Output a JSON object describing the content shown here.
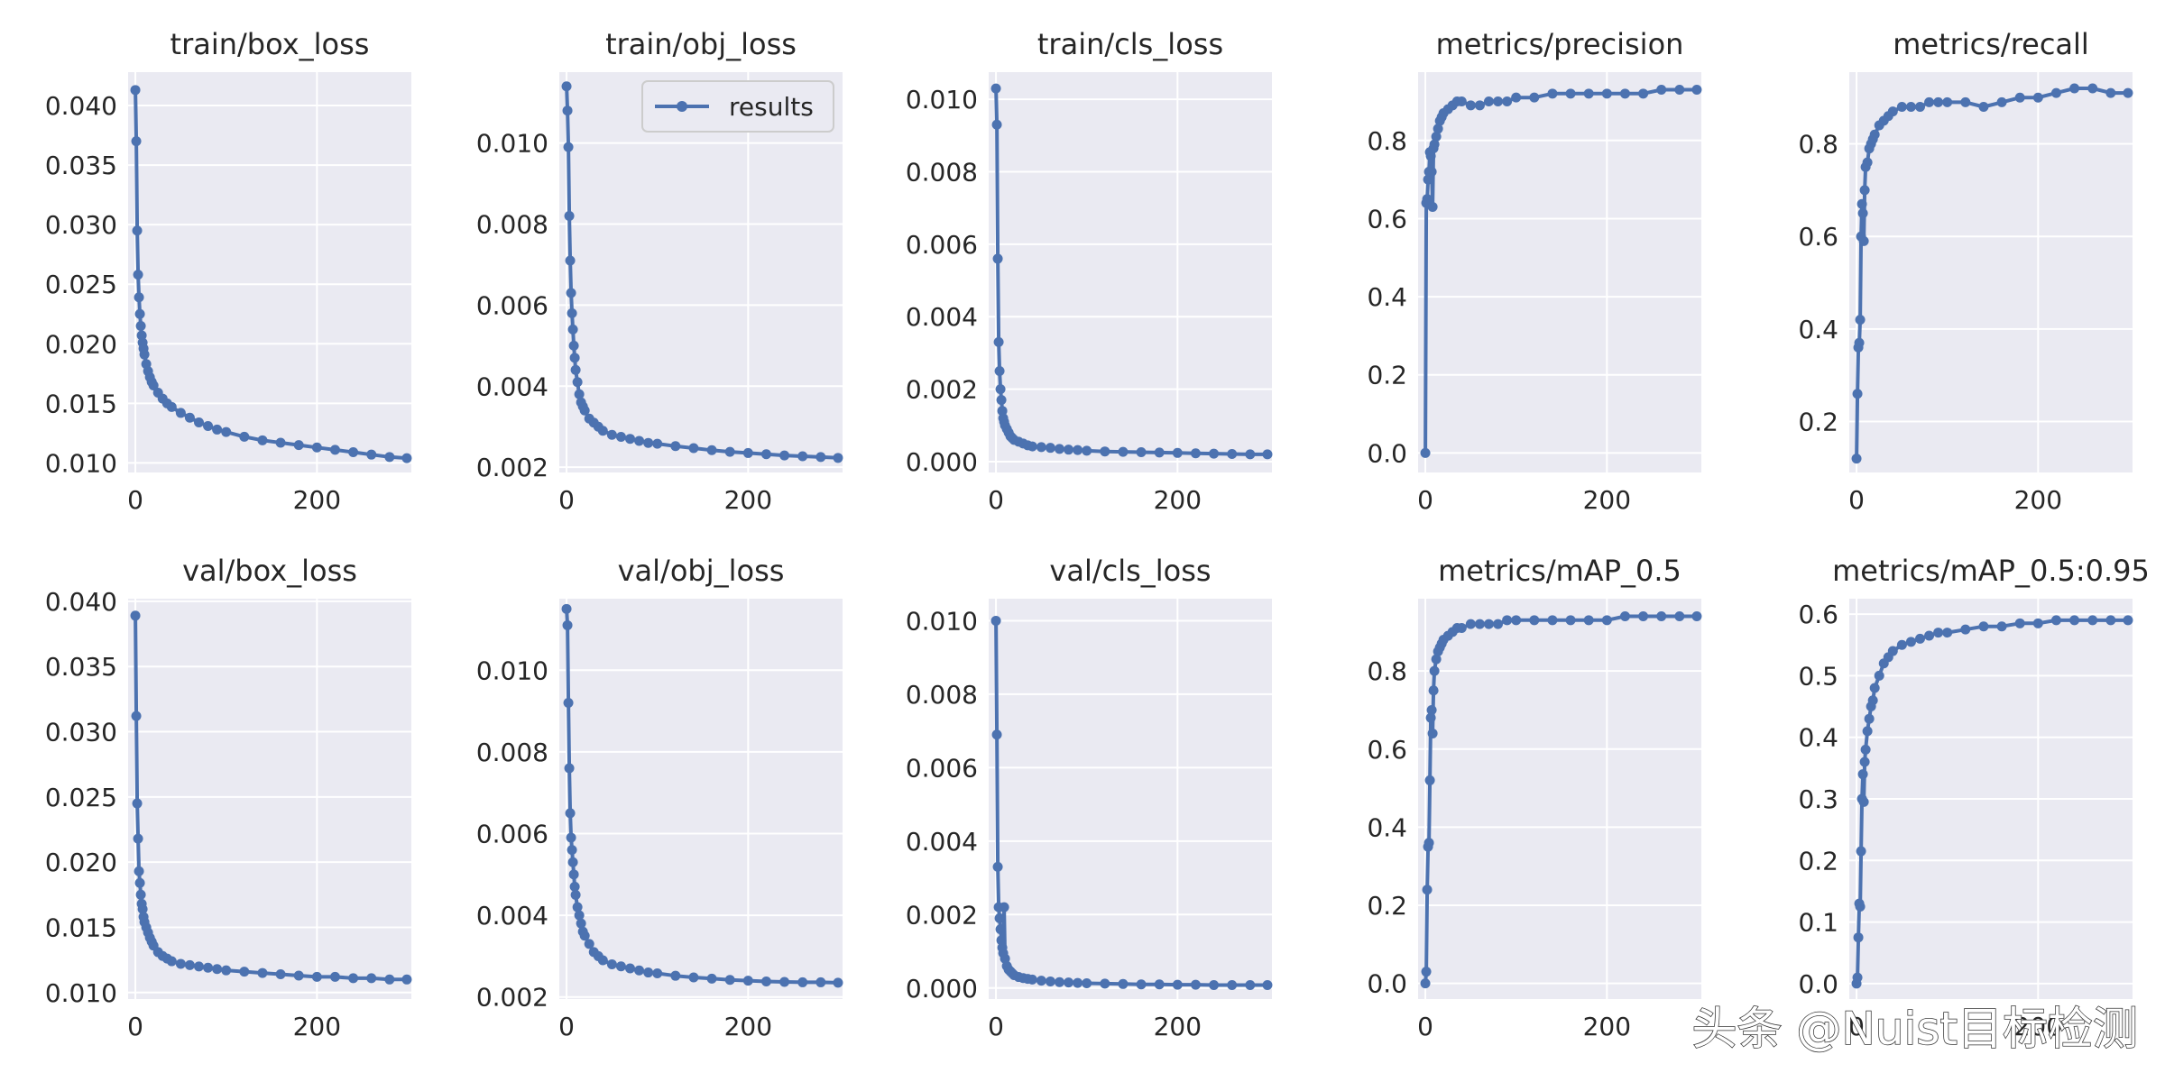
{
  "figure": {
    "watermark": "头条 @Nuist目标检测"
  },
  "style": {
    "series_color": "#4c72b0",
    "axes_background": "#eaeaf2",
    "grid_color": "#ffffff",
    "text_color": "#262626"
  },
  "chart_data": [
    {
      "type": "line",
      "title": "train/box_loss",
      "xlim": [
        -8,
        304
      ],
      "ylim": [
        0.0092,
        0.0428
      ],
      "xticks": [
        0,
        200
      ],
      "xtick_labels": [
        "0",
        "200"
      ],
      "yticks": [
        0.01,
        0.015,
        0.02,
        0.025,
        0.03,
        0.035,
        0.04
      ],
      "ytick_labels": [
        "0.010",
        "0.015",
        "0.020",
        "0.025",
        "0.030",
        "0.035",
        "0.040"
      ],
      "grid": true,
      "series": [
        {
          "x": [
            0,
            1,
            2,
            3,
            4,
            5,
            6,
            7,
            8,
            9,
            10,
            12,
            14,
            16,
            18,
            20,
            25,
            30,
            35,
            40,
            50,
            60,
            70,
            80,
            90,
            100,
            120,
            140,
            160,
            180,
            200,
            220,
            240,
            260,
            280,
            299
          ],
          "y": [
            0.0413,
            0.037,
            0.0295,
            0.0258,
            0.0239,
            0.0225,
            0.0215,
            0.0207,
            0.0201,
            0.0196,
            0.0191,
            0.0183,
            0.0177,
            0.0172,
            0.0168,
            0.0165,
            0.0159,
            0.0154,
            0.015,
            0.0147,
            0.0142,
            0.0138,
            0.0134,
            0.0131,
            0.0128,
            0.0126,
            0.0122,
            0.0119,
            0.0117,
            0.0115,
            0.0113,
            0.0111,
            0.0109,
            0.0107,
            0.0105,
            0.0104
          ]
        }
      ]
    },
    {
      "type": "line",
      "title": "train/obj_loss",
      "xlim": [
        -8,
        304
      ],
      "ylim": [
        0.00187,
        0.01175
      ],
      "xticks": [
        0,
        200
      ],
      "xtick_labels": [
        "0",
        "200"
      ],
      "yticks": [
        0.002,
        0.004,
        0.006,
        0.008,
        0.01
      ],
      "ytick_labels": [
        "0.002",
        "0.004",
        "0.006",
        "0.008",
        "0.010"
      ],
      "grid": true,
      "legend": {
        "entries": [
          "results"
        ],
        "placement": "top-right"
      },
      "series": [
        {
          "name": "results",
          "x": [
            0,
            1,
            2,
            3,
            4,
            5,
            6,
            7,
            8,
            9,
            10,
            12,
            14,
            16,
            18,
            20,
            25,
            30,
            35,
            40,
            50,
            60,
            70,
            80,
            90,
            100,
            120,
            140,
            160,
            180,
            200,
            220,
            240,
            260,
            280,
            299
          ],
          "y": [
            0.0114,
            0.0108,
            0.0099,
            0.0082,
            0.0071,
            0.0063,
            0.0058,
            0.0054,
            0.005,
            0.0047,
            0.0044,
            0.0041,
            0.0038,
            0.0036,
            0.0035,
            0.0034,
            0.0032,
            0.0031,
            0.003,
            0.0029,
            0.0028,
            0.00275,
            0.0027,
            0.00265,
            0.0026,
            0.00258,
            0.00252,
            0.00247,
            0.00242,
            0.00238,
            0.00235,
            0.00232,
            0.00229,
            0.00227,
            0.00225,
            0.00223
          ]
        }
      ]
    },
    {
      "type": "line",
      "title": "train/cls_loss",
      "xlim": [
        -8,
        304
      ],
      "ylim": [
        -0.0003,
        0.01075
      ],
      "xticks": [
        0,
        200
      ],
      "xtick_labels": [
        "0",
        "200"
      ],
      "yticks": [
        0.0,
        0.002,
        0.004,
        0.006,
        0.008,
        0.01
      ],
      "ytick_labels": [
        "0.000",
        "0.002",
        "0.004",
        "0.006",
        "0.008",
        "0.010"
      ],
      "grid": true,
      "series": [
        {
          "x": [
            0,
            1,
            2,
            3,
            4,
            5,
            6,
            7,
            8,
            9,
            10,
            12,
            14,
            16,
            18,
            20,
            25,
            30,
            35,
            40,
            50,
            60,
            70,
            80,
            90,
            100,
            120,
            140,
            160,
            180,
            200,
            220,
            240,
            260,
            280,
            299
          ],
          "y": [
            0.0103,
            0.0093,
            0.0056,
            0.0033,
            0.0025,
            0.002,
            0.0017,
            0.0014,
            0.0012,
            0.0011,
            0.001,
            0.0009,
            0.0008,
            0.0007,
            0.00065,
            0.0006,
            0.00055,
            0.0005,
            0.00045,
            0.00042,
            0.0004,
            0.00038,
            0.00035,
            0.00033,
            0.00032,
            0.0003,
            0.00028,
            0.00027,
            0.00026,
            0.00025,
            0.00024,
            0.00023,
            0.00022,
            0.00021,
            0.0002,
            0.0002
          ]
        }
      ]
    },
    {
      "type": "line",
      "title": "metrics/precision",
      "xlim": [
        -8,
        304
      ],
      "ylim": [
        -0.05,
        0.975
      ],
      "xticks": [
        0,
        200
      ],
      "xtick_labels": [
        "0",
        "200"
      ],
      "yticks": [
        0.0,
        0.2,
        0.4,
        0.6,
        0.8
      ],
      "ytick_labels": [
        "0.0",
        "0.2",
        "0.4",
        "0.6",
        "0.8"
      ],
      "grid": true,
      "series": [
        {
          "x": [
            0,
            1,
            2,
            3,
            4,
            5,
            6,
            7,
            8,
            9,
            10,
            12,
            14,
            16,
            18,
            20,
            25,
            30,
            35,
            40,
            50,
            60,
            70,
            80,
            90,
            100,
            120,
            140,
            160,
            180,
            200,
            220,
            240,
            260,
            280,
            299
          ],
          "y": [
            0.0,
            0.64,
            0.65,
            0.7,
            0.72,
            0.77,
            0.76,
            0.72,
            0.63,
            0.78,
            0.79,
            0.81,
            0.83,
            0.85,
            0.86,
            0.87,
            0.88,
            0.89,
            0.9,
            0.9,
            0.89,
            0.89,
            0.9,
            0.9,
            0.9,
            0.91,
            0.91,
            0.92,
            0.92,
            0.92,
            0.92,
            0.92,
            0.92,
            0.93,
            0.93,
            0.93
          ]
        }
      ]
    },
    {
      "type": "line",
      "title": "metrics/recall",
      "xlim": [
        -8,
        304
      ],
      "ylim": [
        0.09,
        0.955
      ],
      "xticks": [
        0,
        200
      ],
      "xtick_labels": [
        "0",
        "200"
      ],
      "yticks": [
        0.2,
        0.4,
        0.6,
        0.8
      ],
      "ytick_labels": [
        "0.2",
        "0.4",
        "0.6",
        "0.8"
      ],
      "grid": true,
      "series": [
        {
          "x": [
            0,
            1,
            2,
            3,
            4,
            5,
            6,
            7,
            8,
            9,
            10,
            12,
            14,
            16,
            18,
            20,
            25,
            30,
            35,
            40,
            50,
            60,
            70,
            80,
            90,
            100,
            120,
            140,
            160,
            180,
            200,
            220,
            240,
            260,
            280,
            299
          ],
          "y": [
            0.12,
            0.26,
            0.36,
            0.37,
            0.42,
            0.6,
            0.67,
            0.65,
            0.59,
            0.7,
            0.75,
            0.76,
            0.79,
            0.8,
            0.81,
            0.82,
            0.84,
            0.85,
            0.86,
            0.87,
            0.88,
            0.88,
            0.88,
            0.89,
            0.89,
            0.89,
            0.89,
            0.88,
            0.89,
            0.9,
            0.9,
            0.91,
            0.92,
            0.92,
            0.91,
            0.91
          ]
        }
      ]
    },
    {
      "type": "line",
      "title": "val/box_loss",
      "xlim": [
        -8,
        304
      ],
      "ylim": [
        0.0095,
        0.0402
      ],
      "xticks": [
        0,
        200
      ],
      "xtick_labels": [
        "0",
        "200"
      ],
      "yticks": [
        0.01,
        0.015,
        0.02,
        0.025,
        0.03,
        0.035,
        0.04
      ],
      "ytick_labels": [
        "0.010",
        "0.015",
        "0.020",
        "0.025",
        "0.030",
        "0.035",
        "0.040"
      ],
      "grid": true,
      "series": [
        {
          "x": [
            0,
            1,
            2,
            3,
            4,
            5,
            6,
            7,
            8,
            9,
            10,
            12,
            14,
            16,
            18,
            20,
            25,
            30,
            35,
            40,
            50,
            60,
            70,
            80,
            90,
            100,
            120,
            140,
            160,
            180,
            200,
            220,
            240,
            260,
            280,
            299
          ],
          "y": [
            0.0389,
            0.0312,
            0.0245,
            0.0218,
            0.0193,
            0.0184,
            0.0175,
            0.0168,
            0.0164,
            0.0158,
            0.0154,
            0.015,
            0.0146,
            0.0142,
            0.0139,
            0.0136,
            0.0131,
            0.0128,
            0.0126,
            0.0124,
            0.0122,
            0.0121,
            0.012,
            0.0119,
            0.0118,
            0.0117,
            0.0116,
            0.0115,
            0.0114,
            0.0113,
            0.0112,
            0.0112,
            0.0111,
            0.0111,
            0.011,
            0.011
          ]
        }
      ]
    },
    {
      "type": "line",
      "title": "val/obj_loss",
      "xlim": [
        -8,
        304
      ],
      "ylim": [
        0.00195,
        0.01175
      ],
      "xticks": [
        0,
        200
      ],
      "xtick_labels": [
        "0",
        "200"
      ],
      "yticks": [
        0.002,
        0.004,
        0.006,
        0.008,
        0.01
      ],
      "ytick_labels": [
        "0.002",
        "0.004",
        "0.006",
        "0.008",
        "0.010"
      ],
      "grid": true,
      "series": [
        {
          "x": [
            0,
            1,
            2,
            3,
            4,
            5,
            6,
            7,
            8,
            9,
            10,
            12,
            14,
            16,
            18,
            20,
            25,
            30,
            35,
            40,
            50,
            60,
            70,
            80,
            90,
            100,
            120,
            140,
            160,
            180,
            200,
            220,
            240,
            260,
            280,
            299
          ],
          "y": [
            0.0115,
            0.0111,
            0.0092,
            0.0076,
            0.0065,
            0.0059,
            0.0056,
            0.0053,
            0.005,
            0.0047,
            0.0045,
            0.0042,
            0.004,
            0.0038,
            0.0036,
            0.0035,
            0.0033,
            0.0031,
            0.003,
            0.0029,
            0.0028,
            0.00275,
            0.0027,
            0.00265,
            0.0026,
            0.00258,
            0.00252,
            0.00248,
            0.00245,
            0.00242,
            0.0024,
            0.00238,
            0.00237,
            0.00236,
            0.00236,
            0.00235
          ]
        }
      ]
    },
    {
      "type": "line",
      "title": "val/cls_loss",
      "xlim": [
        -8,
        304
      ],
      "ylim": [
        -0.0003,
        0.0106
      ],
      "xticks": [
        0,
        200
      ],
      "xtick_labels": [
        "0",
        "200"
      ],
      "yticks": [
        0.0,
        0.002,
        0.004,
        0.006,
        0.008,
        0.01
      ],
      "ytick_labels": [
        "0.000",
        "0.002",
        "0.004",
        "0.006",
        "0.008",
        "0.010"
      ],
      "grid": true,
      "series": [
        {
          "x": [
            0,
            1,
            2,
            3,
            4,
            5,
            6,
            7,
            8,
            9,
            10,
            12,
            14,
            16,
            18,
            20,
            25,
            30,
            35,
            40,
            50,
            60,
            70,
            80,
            90,
            100,
            120,
            140,
            160,
            180,
            200,
            220,
            240,
            260,
            280,
            299
          ],
          "y": [
            0.01,
            0.0069,
            0.0033,
            0.0022,
            0.0019,
            0.0016,
            0.0013,
            0.0011,
            0.00095,
            0.0022,
            0.0008,
            0.0006,
            0.0005,
            0.00045,
            0.0004,
            0.00035,
            0.0003,
            0.00027,
            0.00025,
            0.00023,
            0.0002,
            0.00018,
            0.00016,
            0.00015,
            0.00014,
            0.00013,
            0.00012,
            0.00011,
            0.0001,
            0.0001,
            9e-05,
            9e-05,
            8e-05,
            8e-05,
            8e-05,
            8e-05
          ]
        }
      ]
    },
    {
      "type": "line",
      "title": "metrics/mAP_0.5",
      "xlim": [
        -8,
        304
      ],
      "ylim": [
        -0.04,
        0.985
      ],
      "xticks": [
        0,
        200
      ],
      "xtick_labels": [
        "0",
        "200"
      ],
      "yticks": [
        0.0,
        0.2,
        0.4,
        0.6,
        0.8
      ],
      "ytick_labels": [
        "0.0",
        "0.2",
        "0.4",
        "0.6",
        "0.8"
      ],
      "grid": true,
      "series": [
        {
          "x": [
            0,
            1,
            2,
            3,
            4,
            5,
            6,
            7,
            8,
            9,
            10,
            12,
            14,
            16,
            18,
            20,
            25,
            30,
            35,
            40,
            50,
            60,
            70,
            80,
            90,
            100,
            120,
            140,
            160,
            180,
            200,
            220,
            240,
            260,
            280,
            299
          ],
          "y": [
            0.0,
            0.03,
            0.24,
            0.35,
            0.36,
            0.52,
            0.68,
            0.7,
            0.64,
            0.75,
            0.8,
            0.83,
            0.85,
            0.86,
            0.87,
            0.88,
            0.89,
            0.9,
            0.91,
            0.91,
            0.92,
            0.92,
            0.92,
            0.92,
            0.93,
            0.93,
            0.93,
            0.93,
            0.93,
            0.93,
            0.93,
            0.94,
            0.94,
            0.94,
            0.94,
            0.94
          ]
        }
      ]
    },
    {
      "type": "line",
      "title": "metrics/mAP_0.5:0.95",
      "xlim": [
        -8,
        304
      ],
      "ylim": [
        -0.025,
        0.625
      ],
      "xticks": [
        0,
        200
      ],
      "xtick_labels": [
        "0",
        "200"
      ],
      "yticks": [
        0.0,
        0.1,
        0.2,
        0.3,
        0.4,
        0.5,
        0.6
      ],
      "ytick_labels": [
        "0.0",
        "0.1",
        "0.2",
        "0.3",
        "0.4",
        "0.5",
        "0.6"
      ],
      "grid": true,
      "series": [
        {
          "x": [
            0,
            1,
            2,
            3,
            4,
            5,
            6,
            7,
            8,
            9,
            10,
            12,
            14,
            16,
            18,
            20,
            25,
            30,
            35,
            40,
            50,
            60,
            70,
            80,
            90,
            100,
            120,
            140,
            160,
            180,
            200,
            220,
            240,
            260,
            280,
            299
          ],
          "y": [
            0.0,
            0.01,
            0.075,
            0.13,
            0.125,
            0.215,
            0.3,
            0.34,
            0.295,
            0.36,
            0.38,
            0.41,
            0.43,
            0.45,
            0.46,
            0.48,
            0.5,
            0.52,
            0.53,
            0.54,
            0.55,
            0.555,
            0.56,
            0.565,
            0.57,
            0.57,
            0.575,
            0.58,
            0.58,
            0.585,
            0.585,
            0.59,
            0.59,
            0.59,
            0.59,
            0.59
          ]
        }
      ]
    }
  ]
}
